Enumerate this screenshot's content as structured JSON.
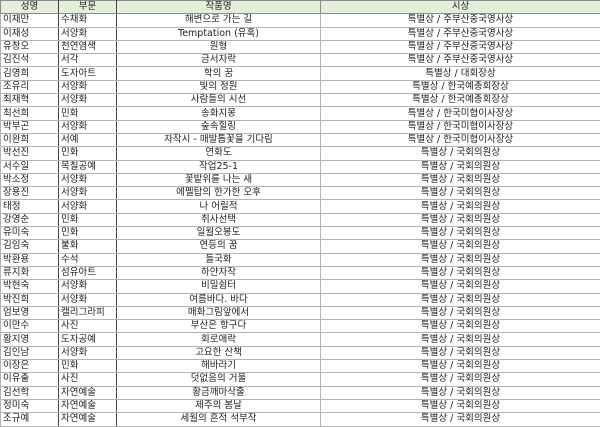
{
  "header": {
    "name": "성명",
    "dept": "부문",
    "title": "작품명",
    "award": "시상"
  },
  "colors": {
    "header_bg": "#e2efda",
    "grid": "#b4b4b4"
  },
  "rows": [
    [
      "이재만",
      "수채화",
      "해변으로 가는 길",
      "특별상 / 주부산중국영사상"
    ],
    [
      "이재성",
      "서양화",
      "Temptation (유혹)",
      "특별상 / 주부산중국영사상"
    ],
    [
      "유창오",
      "천연염색",
      "원형",
      "특별상 / 주부산중국영사상"
    ],
    [
      "김진석",
      "서각",
      "금서자락",
      "특별상 / 주부산중국영사상"
    ],
    [
      "김영희",
      "도자아트",
      "학의 꿈",
      "특별상 / 대회장상"
    ],
    [
      "조유리",
      "서양화",
      "빛의 정원",
      "특별상 / 한국예총회장상"
    ],
    [
      "최재혁",
      "서양화",
      "사람들의 시선",
      "특별상 / 한국예총회장상"
    ],
    [
      "최선희",
      "민화",
      "송화지몽",
      "특별상 / 한국미협이사장상"
    ],
    [
      "박부곤",
      "서양화",
      "숲속힐링",
      "특별상 / 한국미협이사장상"
    ],
    [
      "이완희",
      "서예",
      "자작시 - 매발톱꽃을 기다림",
      "특별상 / 한국미협이사장상"
    ],
    [
      "박선진",
      "민화",
      "연화도",
      "특별상 / 국회의원상"
    ],
    [
      "서수일",
      "목칠공예",
      "작업25-1",
      "특별상 / 국회의원상"
    ],
    [
      "박소정",
      "서양화",
      "꽃밭위를 나는 새",
      "특별상 / 국회의원상"
    ],
    [
      "장용진",
      "서양화",
      "에펠탑의 한가한 오후",
      "특별상 / 국회의원상"
    ],
    [
      "태정",
      "서양화",
      "나 어릴적",
      "특별상 / 국회의원상"
    ],
    [
      "강영순",
      "민화",
      "취사선택",
      "특별상 / 국회의원상"
    ],
    [
      "유미숙",
      "민화",
      "일월오봉도",
      "특별상 / 국회의원상"
    ],
    [
      "김임숙",
      "불화",
      "연등의 꿈",
      "특별상 / 국회의원상"
    ],
    [
      "박환용",
      "수석",
      "들국화",
      "특별상 / 국회의원상"
    ],
    [
      "류지화",
      "섬유아트",
      "하얀자작",
      "특별상 / 국회의원상"
    ],
    [
      "박현숙",
      "서양화",
      "비밀쉼터",
      "특별상 / 국회의원상"
    ],
    [
      "박진희",
      "서양화",
      "여름바다. 바다",
      "특별상 / 국회의원상"
    ],
    [
      "엄보영",
      "캘리그라피",
      "매화그림앞에서",
      "특별상 / 국회의원상"
    ],
    [
      "이만수",
      "사진",
      "부산은 항구다",
      "특별상 / 국회의원상"
    ],
    [
      "황지영",
      "도자공예",
      "회로애락",
      "특별상 / 국회의원상"
    ],
    [
      "김인남",
      "서양화",
      "고요한 산책",
      "특별상 / 국회의원상"
    ],
    [
      "이장은",
      "민화",
      "해바라기",
      "특별상 / 국회의원상"
    ],
    [
      "이유출",
      "사진",
      "덧없음의 거울",
      "특별상 / 국회의원상"
    ],
    [
      "김선학",
      "자연예술",
      "황금깨마삭줄",
      "특별상 / 국회의원상"
    ],
    [
      "정미숙",
      "자연예술",
      "제주의 봄날",
      "특별상 / 국회의원상"
    ],
    [
      "조규예",
      "자연예술",
      "세월의 흔적 석부작",
      "특별상 / 국회의원상"
    ]
  ]
}
